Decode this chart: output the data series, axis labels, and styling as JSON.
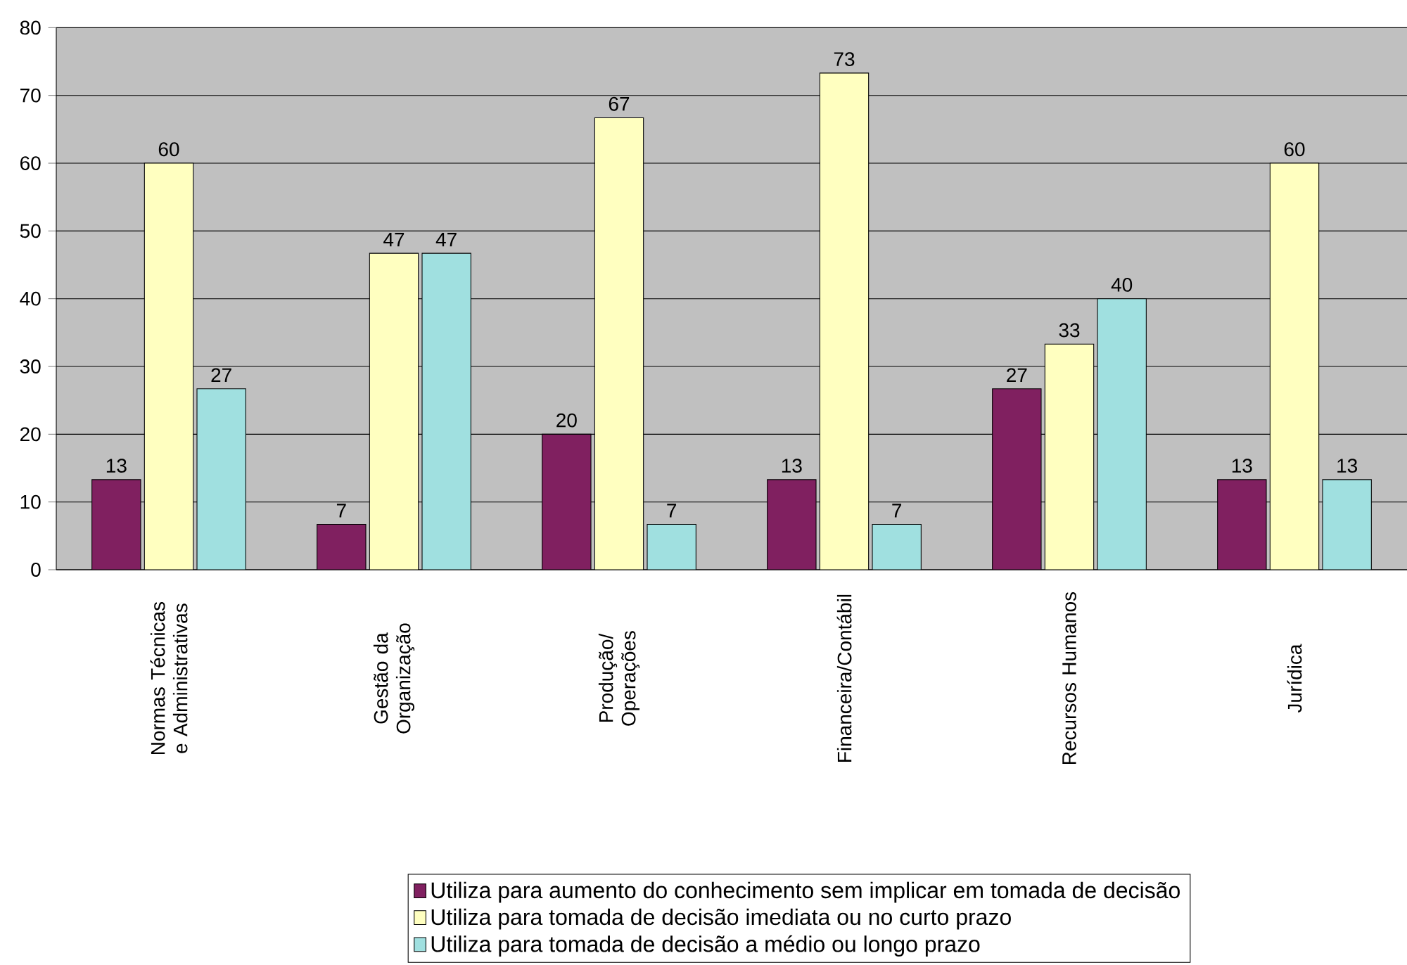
{
  "chart_data": {
    "type": "bar",
    "categories": [
      "Normas Técnicas e Administrativas",
      "Gestão da Organização",
      "Produção/ Operações",
      "Financeira/Contábil",
      "Recursos Humanos",
      "Jurídica"
    ],
    "series": [
      {
        "name": "Utiliza para aumento do conhecimento sem implicar em tomada de decisão",
        "color": "#802060",
        "values": [
          13.3,
          6.7,
          20,
          13.3,
          26.7,
          13.3
        ],
        "value_labels": [
          "13",
          "7",
          "20",
          "13",
          "27",
          "13"
        ]
      },
      {
        "name": "Utiliza para tomada de decisão imediata ou no curto prazo",
        "color": "#ffffc0",
        "values": [
          60,
          46.7,
          66.7,
          73.3,
          33.3,
          60
        ],
        "value_labels": [
          "60",
          "47",
          "67",
          "73",
          "33",
          "60"
        ]
      },
      {
        "name": "Utiliza para tomada de decisão a médio ou longo prazo",
        "color": "#a0e0e0",
        "values": [
          26.7,
          46.7,
          6.7,
          6.7,
          40,
          13.3
        ],
        "value_labels": [
          "27",
          "47",
          "7",
          "7",
          "40",
          "13"
        ]
      }
    ],
    "ylim": [
      0,
      80
    ],
    "yticks": [
      0,
      10,
      20,
      30,
      40,
      50,
      60,
      70,
      80
    ],
    "grid": "y",
    "legend": "bottom"
  }
}
